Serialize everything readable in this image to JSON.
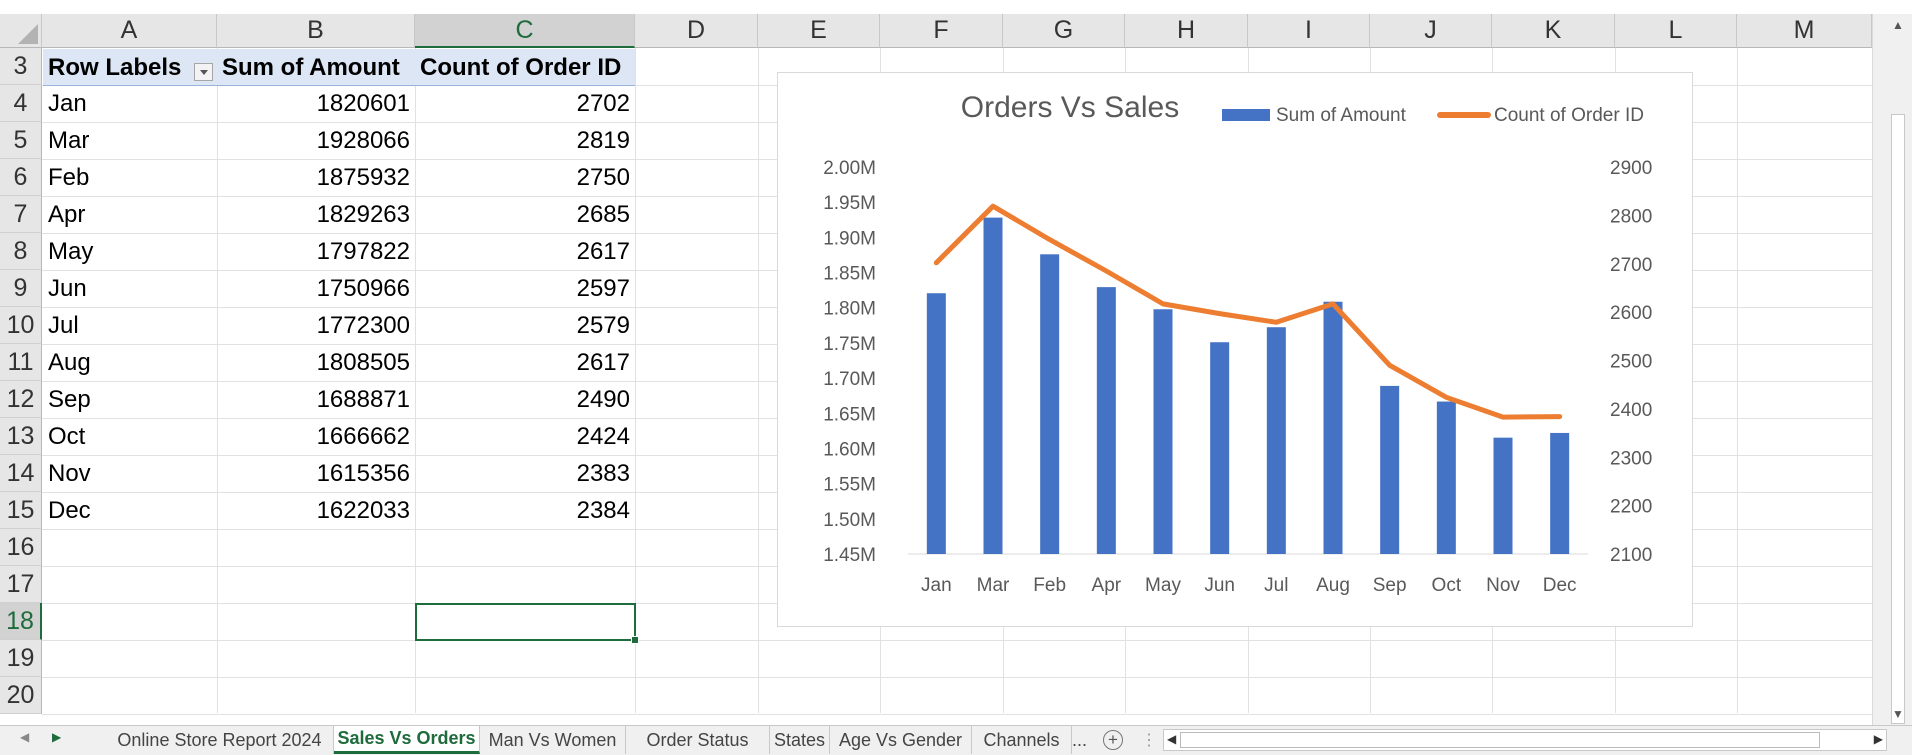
{
  "columns": [
    "A",
    "B",
    "C",
    "D",
    "E",
    "F",
    "G",
    "H",
    "I",
    "J",
    "K",
    "L",
    "M"
  ],
  "rows": [
    "3",
    "4",
    "5",
    "6",
    "7",
    "8",
    "9",
    "10",
    "11",
    "12",
    "13",
    "14",
    "15",
    "16",
    "17",
    "18",
    "19",
    "20"
  ],
  "pivot": {
    "headers": [
      "Row Labels",
      "Sum of Amount",
      "Count of Order ID"
    ],
    "rows": [
      [
        "Jan",
        "1820601",
        "2702"
      ],
      [
        "Mar",
        "1928066",
        "2819"
      ],
      [
        "Feb",
        "1875932",
        "2750"
      ],
      [
        "Apr",
        "1829263",
        "2685"
      ],
      [
        "May",
        "1797822",
        "2617"
      ],
      [
        "Jun",
        "1750966",
        "2597"
      ],
      [
        "Jul",
        "1772300",
        "2579"
      ],
      [
        "Aug",
        "1808505",
        "2617"
      ],
      [
        "Sep",
        "1688871",
        "2490"
      ],
      [
        "Oct",
        "1666662",
        "2424"
      ],
      [
        "Nov",
        "1615356",
        "2383"
      ],
      [
        "Dec",
        "1622033",
        "2384"
      ]
    ]
  },
  "chart_data": {
    "type": "bar",
    "title": "Orders Vs Sales",
    "categories": [
      "Jan",
      "Mar",
      "Feb",
      "Apr",
      "May",
      "Jun",
      "Jul",
      "Aug",
      "Sep",
      "Oct",
      "Nov",
      "Dec"
    ],
    "series": [
      {
        "name": "Sum of Amount",
        "type": "bar",
        "axis": "left",
        "color": "#4472c4",
        "values": [
          1820601,
          1928066,
          1875932,
          1829263,
          1797822,
          1750966,
          1772300,
          1808505,
          1688871,
          1666662,
          1615356,
          1622033
        ]
      },
      {
        "name": "Count of Order ID",
        "type": "line",
        "axis": "right",
        "color": "#ed7d31",
        "values": [
          2702,
          2819,
          2750,
          2685,
          2617,
          2597,
          2579,
          2617,
          2490,
          2424,
          2383,
          2384
        ]
      }
    ],
    "left_axis": {
      "min": 1450000,
      "max": 2000000,
      "ticks": [
        "1.45M",
        "1.50M",
        "1.55M",
        "1.60M",
        "1.65M",
        "1.70M",
        "1.75M",
        "1.80M",
        "1.85M",
        "1.90M",
        "1.95M",
        "2.00M"
      ]
    },
    "right_axis": {
      "min": 2100,
      "max": 2900,
      "ticks": [
        "2100",
        "2200",
        "2300",
        "2400",
        "2500",
        "2600",
        "2700",
        "2800",
        "2900"
      ]
    },
    "legend_position": "top-right",
    "grid": false
  },
  "sheet_tabs": {
    "items": [
      "Online Store Report 2024",
      "Sales Vs Orders",
      "Man Vs Women",
      "Order Status",
      "States",
      "Age Vs Gender",
      "Channels"
    ],
    "active": "Sales Vs Orders",
    "more": "...",
    "add": "+",
    "separator": "⋮"
  }
}
